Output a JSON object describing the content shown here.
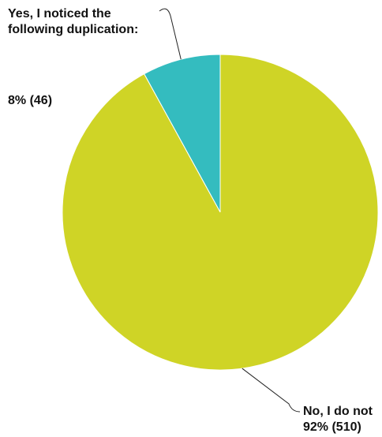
{
  "chart_data": {
    "type": "pie",
    "title": "",
    "slices": [
      {
        "name": "Yes, I noticed the following duplication:",
        "percent": 8,
        "count": 46,
        "value_label": "8% (46)",
        "color": "#34bcbf"
      },
      {
        "name": "No, I do not",
        "percent": 92,
        "count": 510,
        "value_label": "92% (510)",
        "color": "#cfd426"
      }
    ],
    "start_angle_deg": 0,
    "direction": "counterclockwise-from-top",
    "edge_color": "#ffffff",
    "legend": "none"
  }
}
